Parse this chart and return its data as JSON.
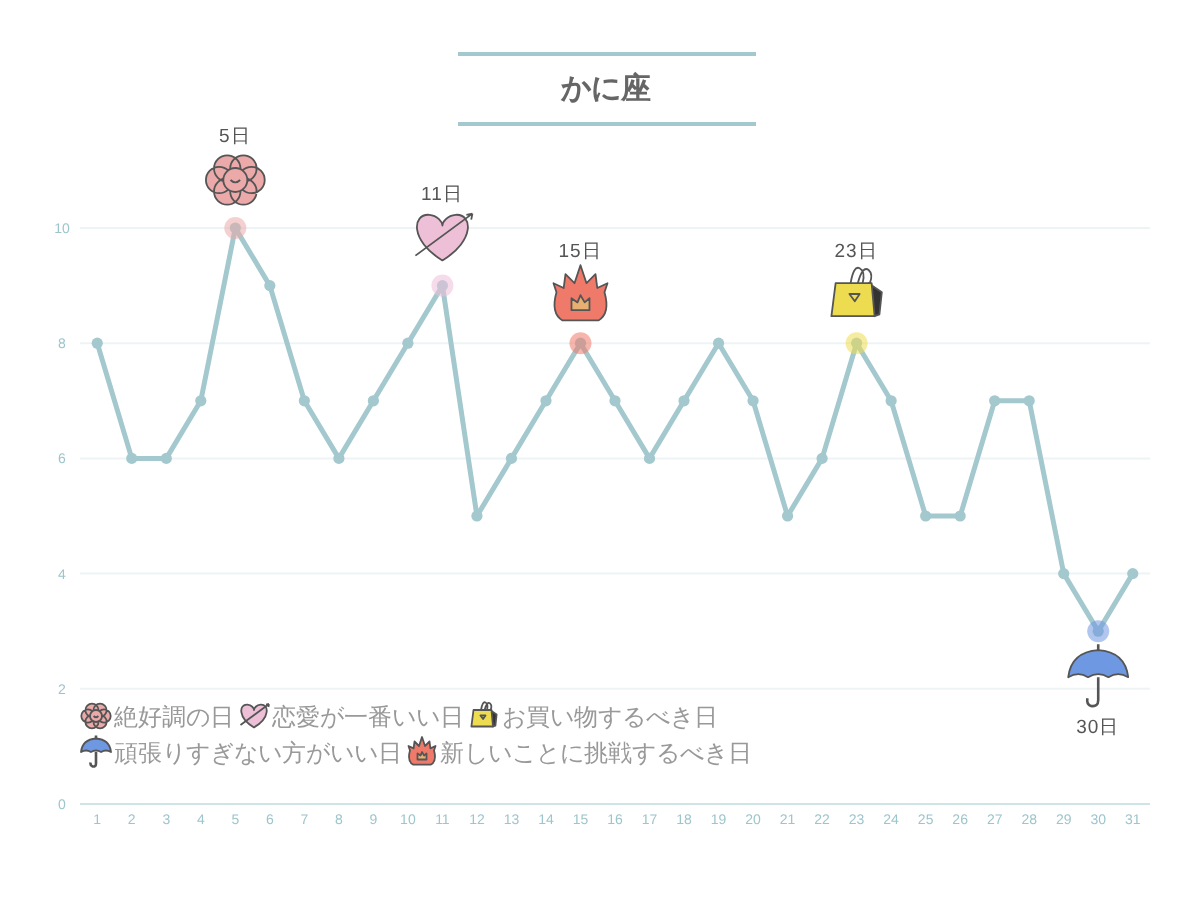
{
  "chart_data": {
    "type": "line",
    "title": "かに座",
    "x": [
      1,
      2,
      3,
      4,
      5,
      6,
      7,
      8,
      9,
      10,
      11,
      12,
      13,
      14,
      15,
      16,
      17,
      18,
      19,
      20,
      21,
      22,
      23,
      24,
      25,
      26,
      27,
      28,
      29,
      30,
      31
    ],
    "xlim": [
      0.5,
      31.5
    ],
    "xticks": [
      1,
      2,
      3,
      4,
      5,
      6,
      7,
      8,
      9,
      10,
      11,
      12,
      13,
      14,
      15,
      16,
      17,
      18,
      19,
      20,
      21,
      22,
      23,
      24,
      25,
      26,
      27,
      28,
      29,
      30,
      31
    ],
    "ylim": [
      0,
      10
    ],
    "yticks": [
      0,
      2,
      4,
      6,
      8,
      10
    ],
    "grid": "y",
    "marker": "circle",
    "legend": "bottom left",
    "series": [
      {
        "color": "#a3c8ce",
        "values": [
          8,
          6,
          6,
          7,
          10,
          9,
          7,
          6,
          7,
          8,
          9,
          5,
          6,
          7,
          8,
          7,
          6,
          7,
          8,
          7,
          5,
          6,
          8,
          7,
          5,
          5,
          7,
          7,
          4,
          3,
          4
        ]
      },
      {
        "type": "scatter",
        "name": "絶好調の日",
        "color": "#eba9a9",
        "x": [
          5
        ],
        "values": [
          10
        ]
      },
      {
        "type": "scatter",
        "name": "恋愛が一番いい日",
        "color": "#eec0d8",
        "x": [
          11
        ],
        "values": [
          9
        ]
      },
      {
        "type": "scatter",
        "name": "お買い物するべき日",
        "color": "#eedc50",
        "x": [
          23
        ],
        "values": [
          8
        ]
      },
      {
        "type": "scatter",
        "name": "頑張りすぎない方がいい日",
        "color": "#6f98e2",
        "x": [
          30
        ],
        "values": [
          3
        ]
      },
      {
        "type": "scatter",
        "name": "新しいことに挑戦するべき日",
        "color": "#f07a6a",
        "x": [
          15
        ],
        "values": [
          8
        ]
      }
    ],
    "annotations": [
      "5日",
      "11日",
      "23日",
      "30日",
      "15日"
    ]
  }
}
